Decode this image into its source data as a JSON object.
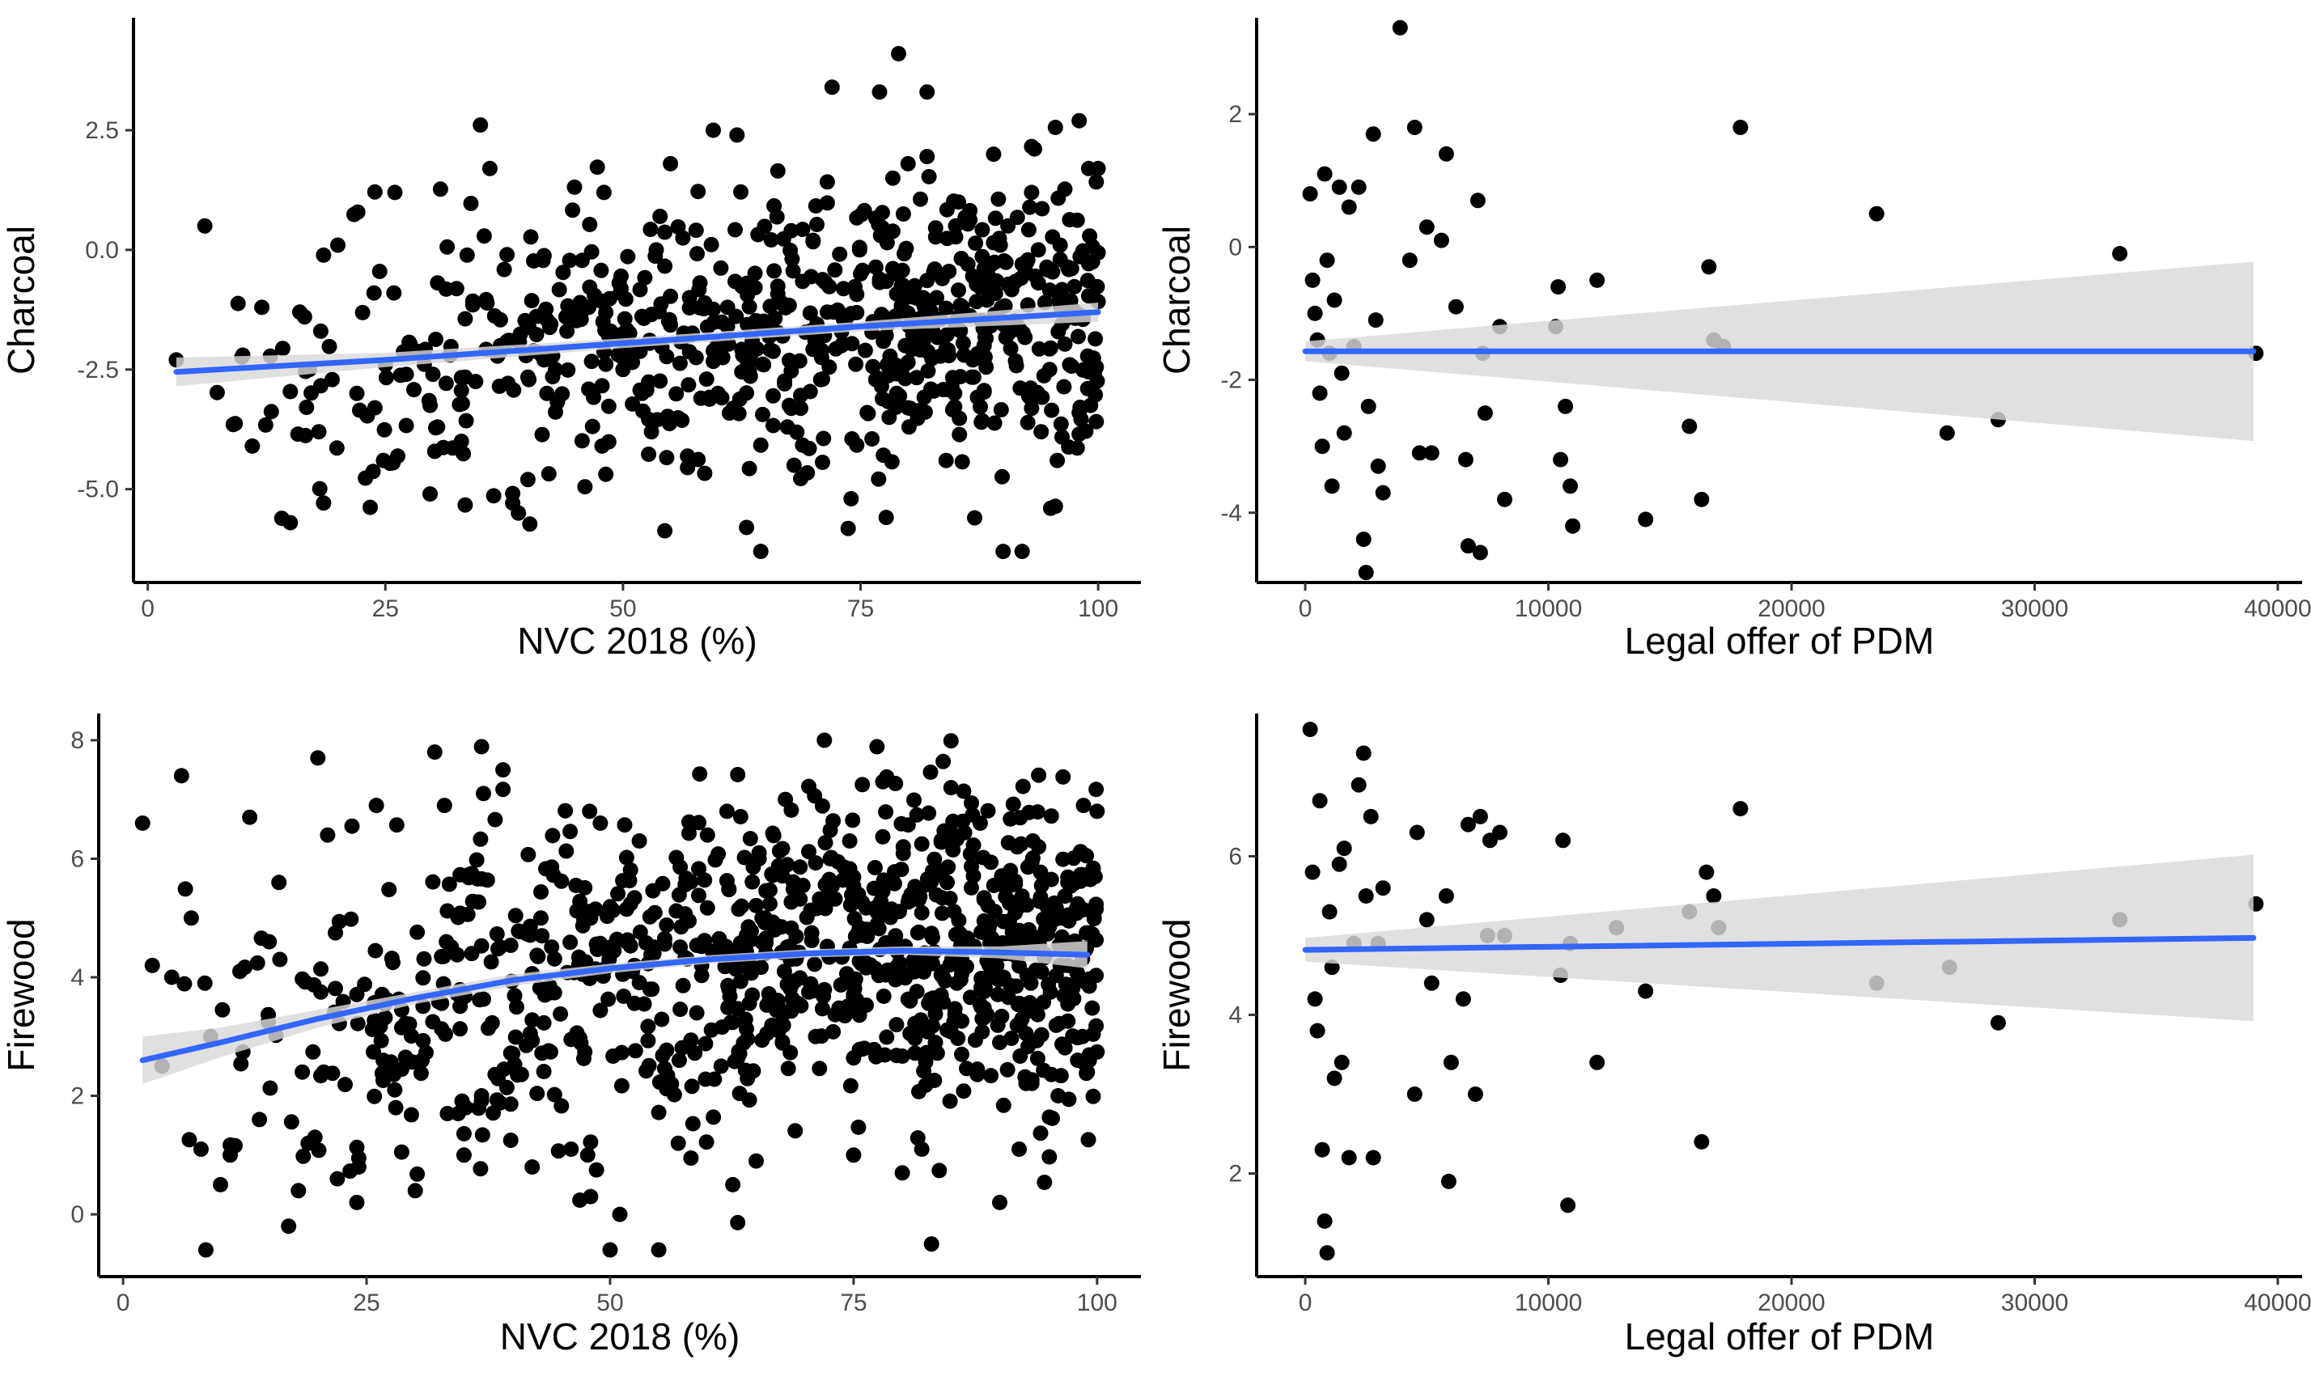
{
  "colors": {
    "points": "#000000",
    "trend": "#3366FF",
    "ribbon": "#d9d9d9"
  },
  "chart_data": [
    {
      "type": "scatter",
      "id": "charcoal-nvc",
      "xlabel": "NVC 2018 (%)",
      "ylabel": "Charcoal",
      "xlim": [
        -1.5,
        104.5
      ],
      "ylim": [
        -6.95,
        4.85
      ],
      "x_ticks": [
        0,
        25,
        50,
        75,
        100
      ],
      "x_tick_labels": [
        "0",
        "25",
        "50",
        "75",
        "100"
      ],
      "y_ticks": [
        2.5,
        0.0,
        -2.5,
        -5.0
      ],
      "y_tick_labels": [
        "2.5",
        "0.0",
        "-2.5",
        "-5.0"
      ],
      "n_points": 780,
      "point_x_range": [
        3,
        100
      ],
      "point_y_range": [
        -6.3,
        4.1
      ],
      "trend": {
        "method": "smooth",
        "x": [
          3,
          25,
          50,
          75,
          100
        ],
        "y": [
          -2.55,
          -2.3,
          -1.95,
          -1.6,
          -1.3
        ],
        "ci_lower": [
          -2.85,
          -2.45,
          -2.05,
          -1.7,
          -1.5
        ],
        "ci_upper": [
          -2.25,
          -2.15,
          -1.85,
          -1.5,
          -1.1
        ]
      },
      "points": [
        [
          3,
          -2.3
        ],
        [
          6,
          0.5
        ],
        [
          9,
          -3.65
        ],
        [
          10,
          -2.2
        ],
        [
          11,
          -4.1
        ],
        [
          12,
          -1.2
        ],
        [
          15,
          -5.7
        ],
        [
          16,
          -1.3
        ],
        [
          17,
          -2.5
        ],
        [
          18,
          -3.8
        ],
        [
          20,
          0.1
        ],
        [
          22,
          -3.0
        ],
        [
          25,
          -2.4
        ],
        [
          26,
          1.2
        ],
        [
          30,
          -2.6
        ],
        [
          33,
          -4.0
        ],
        [
          36,
          1.7
        ],
        [
          39,
          -5.5
        ],
        [
          40,
          -4.8
        ],
        [
          42,
          -3.0
        ],
        [
          44,
          -1.4
        ],
        [
          48,
          1.2
        ],
        [
          50,
          -2.5
        ],
        [
          53,
          -3.8
        ],
        [
          55,
          1.8
        ],
        [
          57,
          -1.0
        ],
        [
          60,
          -3.0
        ],
        [
          62,
          2.4
        ],
        [
          63,
          -5.8
        ],
        [
          65,
          -1.6
        ],
        [
          67,
          -2.8
        ],
        [
          68,
          -4.5
        ],
        [
          70,
          0.2
        ],
        [
          72,
          3.4
        ],
        [
          73,
          -2.0
        ],
        [
          74,
          -5.2
        ],
        [
          75,
          -0.5
        ],
        [
          77,
          3.3
        ],
        [
          78,
          -3.5
        ],
        [
          79,
          4.1
        ],
        [
          80,
          1.8
        ],
        [
          82,
          3.3
        ],
        [
          83,
          -1.0
        ],
        [
          84,
          -4.4
        ],
        [
          85,
          0.5
        ],
        [
          87,
          -5.6
        ],
        [
          88,
          -2.0
        ],
        [
          89,
          2.0
        ],
        [
          90,
          -6.3
        ],
        [
          91,
          -1.5
        ],
        [
          92,
          -0.3
        ],
        [
          93,
          1.2
        ],
        [
          94,
          -3.8
        ],
        [
          95,
          -5.4
        ],
        [
          96,
          0.1
        ],
        [
          97,
          -2.4
        ],
        [
          98,
          2.7
        ],
        [
          99,
          1.7
        ],
        [
          100,
          1.7
        ]
      ]
    },
    {
      "type": "scatter",
      "id": "charcoal-pdm",
      "xlabel": "Legal offer of PDM",
      "ylabel": "Charcoal",
      "xlim": [
        -2000,
        41000
      ],
      "ylim": [
        -5.05,
        3.45
      ],
      "x_ticks": [
        0,
        10000,
        20000,
        30000,
        40000
      ],
      "x_tick_labels": [
        "0",
        "10000",
        "20000",
        "30000",
        "40000"
      ],
      "y_ticks": [
        2,
        0,
        -2,
        -4
      ],
      "y_tick_labels": [
        "2",
        "0",
        "-2",
        "-4"
      ],
      "trend": {
        "method": "lm",
        "x": [
          0,
          39000
        ],
        "y": [
          -1.57,
          -1.57
        ],
        "ci_lower": [
          -1.72,
          -2.92
        ],
        "ci_upper": [
          -1.42,
          -0.22
        ]
      },
      "points": [
        [
          200,
          0.8
        ],
        [
          300,
          -0.5
        ],
        [
          400,
          -1.0
        ],
        [
          500,
          -1.4
        ],
        [
          600,
          -2.2
        ],
        [
          700,
          -3.0
        ],
        [
          800,
          1.1
        ],
        [
          900,
          -0.2
        ],
        [
          1000,
          -1.6
        ],
        [
          1100,
          -3.6
        ],
        [
          1200,
          -0.8
        ],
        [
          1400,
          0.9
        ],
        [
          1500,
          -1.9
        ],
        [
          1600,
          -2.8
        ],
        [
          1800,
          0.6
        ],
        [
          2000,
          -1.5
        ],
        [
          2200,
          0.9
        ],
        [
          2400,
          -4.4
        ],
        [
          2500,
          -4.9
        ],
        [
          2600,
          -2.4
        ],
        [
          2800,
          1.7
        ],
        [
          2900,
          -1.1
        ],
        [
          3000,
          -3.3
        ],
        [
          3200,
          -3.7
        ],
        [
          3900,
          3.3
        ],
        [
          4300,
          -0.2
        ],
        [
          4500,
          1.8
        ],
        [
          4700,
          -3.1
        ],
        [
          5000,
          0.3
        ],
        [
          5200,
          -3.1
        ],
        [
          5600,
          0.1
        ],
        [
          5800,
          1.4
        ],
        [
          6200,
          -0.9
        ],
        [
          6600,
          -3.2
        ],
        [
          6700,
          -4.5
        ],
        [
          7100,
          0.7
        ],
        [
          7200,
          -4.6
        ],
        [
          7300,
          -1.6
        ],
        [
          7400,
          -2.5
        ],
        [
          8000,
          -1.2
        ],
        [
          8200,
          -3.8
        ],
        [
          10300,
          -1.2
        ],
        [
          10400,
          -0.6
        ],
        [
          10500,
          -3.2
        ],
        [
          10700,
          -2.4
        ],
        [
          10900,
          -3.6
        ],
        [
          11000,
          -4.2
        ],
        [
          12000,
          -0.5
        ],
        [
          14000,
          -4.1
        ],
        [
          15800,
          -2.7
        ],
        [
          16300,
          -3.8
        ],
        [
          16600,
          -0.3
        ],
        [
          16800,
          -1.4
        ],
        [
          17200,
          -1.5
        ],
        [
          17900,
          1.8
        ],
        [
          23500,
          0.5
        ],
        [
          26400,
          -2.8
        ],
        [
          28500,
          -2.6
        ],
        [
          33500,
          -0.1
        ],
        [
          39100,
          -1.6
        ]
      ]
    },
    {
      "type": "scatter",
      "id": "firewood-nvc",
      "xlabel": "NVC 2018 (%)",
      "ylabel": "Firewood",
      "xlim": [
        -2.5,
        104.5
      ],
      "ylim": [
        -1.05,
        8.45
      ],
      "x_ticks": [
        0,
        25,
        50,
        75,
        100
      ],
      "x_tick_labels": [
        "0",
        "25",
        "50",
        "75",
        "100"
      ],
      "y_ticks": [
        8,
        6,
        4,
        2,
        0
      ],
      "y_tick_labels": [
        "8",
        "6",
        "4",
        "2",
        "0"
      ],
      "n_points": 1050,
      "point_x_range": [
        2,
        100
      ],
      "point_y_range": [
        -0.6,
        8.0
      ],
      "trend": {
        "method": "smooth",
        "x": [
          2,
          10,
          20,
          30,
          40,
          50,
          60,
          70,
          80,
          90,
          99
        ],
        "y": [
          2.6,
          2.9,
          3.3,
          3.65,
          3.95,
          4.15,
          4.3,
          4.4,
          4.45,
          4.42,
          4.38
        ],
        "ci_lower": [
          2.2,
          2.65,
          3.15,
          3.55,
          3.85,
          4.07,
          4.23,
          4.33,
          4.38,
          4.32,
          4.15
        ],
        "ci_upper": [
          3.0,
          3.15,
          3.45,
          3.75,
          4.05,
          4.23,
          4.37,
          4.47,
          4.52,
          4.52,
          4.61
        ]
      },
      "points": [
        [
          2,
          6.6
        ],
        [
          3,
          4.2
        ],
        [
          4,
          2.5
        ],
        [
          5,
          4.0
        ],
        [
          6,
          7.4
        ],
        [
          7,
          5.0
        ],
        [
          8,
          1.1
        ],
        [
          9,
          3.0
        ],
        [
          10,
          0.5
        ],
        [
          11,
          1.0
        ],
        [
          12,
          4.1
        ],
        [
          13,
          6.7
        ],
        [
          14,
          1.6
        ],
        [
          15,
          4.6
        ],
        [
          16,
          5.6
        ],
        [
          17,
          -0.2
        ],
        [
          18,
          0.4
        ],
        [
          19,
          1.2
        ],
        [
          20,
          7.7
        ],
        [
          21,
          6.4
        ],
        [
          22,
          0.6
        ],
        [
          24,
          0.2
        ],
        [
          26,
          6.9
        ],
        [
          28,
          1.8
        ],
        [
          30,
          0.4
        ],
        [
          32,
          7.8
        ],
        [
          33,
          6.9
        ],
        [
          35,
          1.0
        ],
        [
          37,
          7.1
        ],
        [
          39,
          7.5
        ],
        [
          42,
          0.8
        ],
        [
          46,
          1.1
        ],
        [
          48,
          0.3
        ],
        [
          49,
          6.6
        ],
        [
          50,
          -0.6
        ],
        [
          51,
          0.0
        ],
        [
          53,
          6.3
        ],
        [
          55,
          -0.6
        ],
        [
          57,
          1.2
        ],
        [
          60,
          6.4
        ],
        [
          62,
          6.8
        ],
        [
          65,
          0.9
        ],
        [
          68,
          7.0
        ],
        [
          72,
          8.0
        ],
        [
          75,
          1.0
        ],
        [
          78,
          7.3
        ],
        [
          80,
          0.7
        ],
        [
          82,
          1.1
        ],
        [
          83,
          -0.5
        ],
        [
          85,
          7.2
        ],
        [
          88,
          6.6
        ],
        [
          90,
          0.2
        ],
        [
          92,
          1.1
        ],
        [
          94,
          6.2
        ],
        [
          96,
          2.0
        ],
        [
          97,
          5.6
        ],
        [
          98,
          2.6
        ],
        [
          99,
          2.4
        ],
        [
          100,
          6.8
        ]
      ]
    },
    {
      "type": "scatter",
      "id": "firewood-pdm",
      "xlabel": "Legal offer of PDM",
      "ylabel": "Firewood",
      "xlim": [
        -2000,
        41000
      ],
      "ylim": [
        0.7,
        7.8
      ],
      "x_ticks": [
        0,
        10000,
        20000,
        30000,
        40000
      ],
      "x_tick_labels": [
        "0",
        "10000",
        "20000",
        "30000",
        "40000"
      ],
      "y_ticks": [
        6,
        4,
        2
      ],
      "y_tick_labels": [
        "6",
        "4",
        "2"
      ],
      "trend": {
        "method": "lm",
        "x": [
          0,
          39000
        ],
        "y": [
          4.82,
          4.97
        ],
        "ci_lower": [
          4.67,
          3.92
        ],
        "ci_upper": [
          4.97,
          6.02
        ]
      },
      "points": [
        [
          200,
          7.6
        ],
        [
          300,
          5.8
        ],
        [
          400,
          4.2
        ],
        [
          500,
          3.8
        ],
        [
          600,
          6.7
        ],
        [
          700,
          2.3
        ],
        [
          800,
          1.4
        ],
        [
          900,
          1.0
        ],
        [
          1000,
          5.3
        ],
        [
          1100,
          4.6
        ],
        [
          1200,
          3.2
        ],
        [
          1400,
          5.9
        ],
        [
          1500,
          3.4
        ],
        [
          1600,
          6.1
        ],
        [
          1800,
          2.2
        ],
        [
          2000,
          4.9
        ],
        [
          2200,
          6.9
        ],
        [
          2400,
          7.3
        ],
        [
          2500,
          5.5
        ],
        [
          2700,
          6.5
        ],
        [
          2800,
          2.2
        ],
        [
          3000,
          4.9
        ],
        [
          3200,
          5.6
        ],
        [
          4500,
          3.0
        ],
        [
          4600,
          6.3
        ],
        [
          5000,
          5.2
        ],
        [
          5200,
          4.4
        ],
        [
          5800,
          5.5
        ],
        [
          5900,
          1.9
        ],
        [
          6000,
          3.4
        ],
        [
          6500,
          4.2
        ],
        [
          6700,
          6.4
        ],
        [
          7000,
          3.0
        ],
        [
          7200,
          6.5
        ],
        [
          7500,
          5.0
        ],
        [
          7600,
          6.2
        ],
        [
          8000,
          6.3
        ],
        [
          8200,
          5.0
        ],
        [
          10500,
          4.5
        ],
        [
          10600,
          6.2
        ],
        [
          10800,
          1.6
        ],
        [
          10900,
          4.9
        ],
        [
          12000,
          3.4
        ],
        [
          12800,
          5.1
        ],
        [
          14000,
          4.3
        ],
        [
          15800,
          5.3
        ],
        [
          16300,
          2.4
        ],
        [
          16500,
          5.8
        ],
        [
          16800,
          5.5
        ],
        [
          17000,
          5.1
        ],
        [
          17900,
          6.6
        ],
        [
          23500,
          4.4
        ],
        [
          26500,
          4.6
        ],
        [
          28500,
          3.9
        ],
        [
          33500,
          5.2
        ],
        [
          39100,
          5.4
        ]
      ]
    }
  ]
}
